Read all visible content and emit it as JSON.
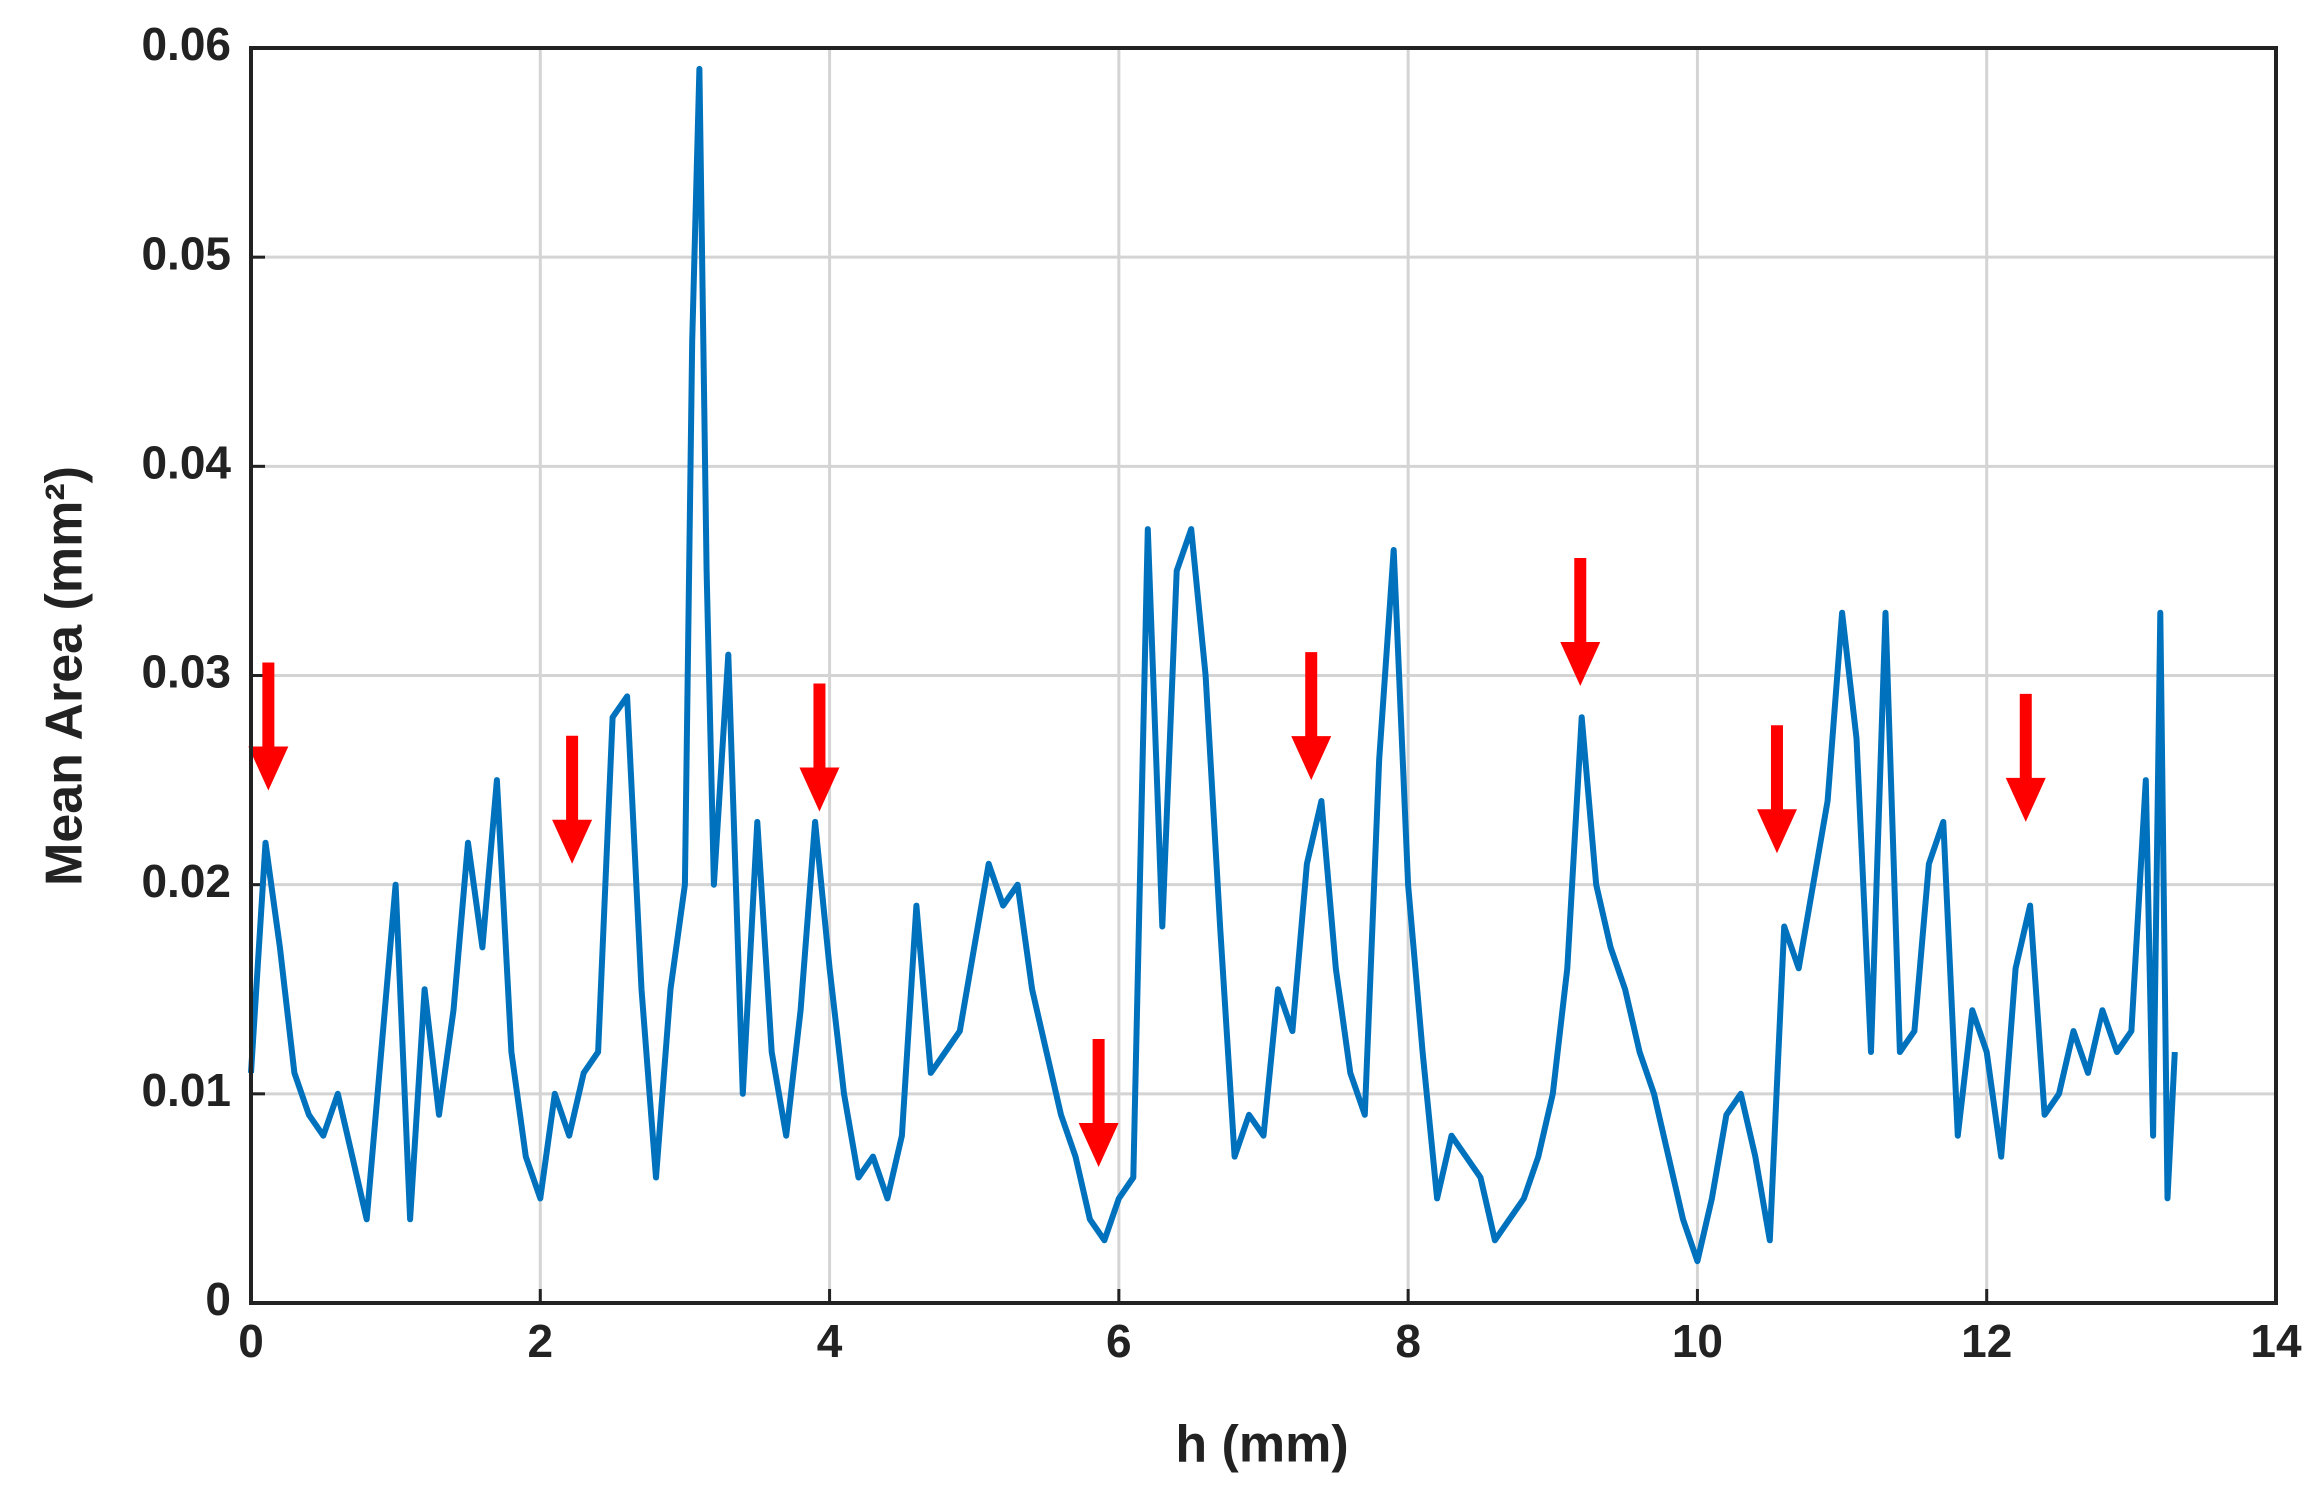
{
  "chart_data": {
    "type": "line",
    "xlabel": "h (mm)",
    "ylabel": "Mean Area (mm²)",
    "x": [
      0.0,
      0.1,
      0.2,
      0.3,
      0.4,
      0.5,
      0.6,
      0.7,
      0.8,
      0.9,
      1.0,
      1.1,
      1.2,
      1.3,
      1.4,
      1.5,
      1.6,
      1.7,
      1.8,
      1.9,
      2.0,
      2.1,
      2.2,
      2.3,
      2.4,
      2.5,
      2.6,
      2.7,
      2.8,
      2.9,
      3.0,
      3.05,
      3.1,
      3.15,
      3.2,
      3.3,
      3.4,
      3.5,
      3.6,
      3.7,
      3.8,
      3.9,
      4.0,
      4.1,
      4.2,
      4.3,
      4.4,
      4.5,
      4.6,
      4.7,
      4.8,
      4.9,
      5.0,
      5.1,
      5.2,
      5.3,
      5.4,
      5.5,
      5.6,
      5.7,
      5.8,
      5.9,
      6.0,
      6.1,
      6.2,
      6.3,
      6.4,
      6.5,
      6.6,
      6.7,
      6.8,
      6.9,
      7.0,
      7.1,
      7.2,
      7.3,
      7.4,
      7.5,
      7.6,
      7.7,
      7.8,
      7.9,
      8.0,
      8.1,
      8.2,
      8.3,
      8.4,
      8.5,
      8.6,
      8.7,
      8.8,
      8.9,
      9.0,
      9.1,
      9.2,
      9.3,
      9.4,
      9.5,
      9.6,
      9.7,
      9.8,
      9.9,
      10.0,
      10.1,
      10.2,
      10.3,
      10.4,
      10.5,
      10.6,
      10.7,
      10.8,
      10.9,
      11.0,
      11.1,
      11.2,
      11.3,
      11.4,
      11.5,
      11.6,
      11.7,
      11.8,
      11.9,
      12.0,
      12.1,
      12.2,
      12.3,
      12.4,
      12.5,
      12.6,
      12.7,
      12.8,
      12.9,
      13.0,
      13.1,
      13.15,
      13.2,
      13.25,
      13.3
    ],
    "values": [
      0.011,
      0.022,
      0.017,
      0.011,
      0.009,
      0.008,
      0.01,
      0.007,
      0.004,
      0.012,
      0.02,
      0.004,
      0.015,
      0.009,
      0.014,
      0.022,
      0.017,
      0.025,
      0.012,
      0.007,
      0.005,
      0.01,
      0.008,
      0.011,
      0.012,
      0.028,
      0.029,
      0.015,
      0.006,
      0.015,
      0.02,
      0.046,
      0.059,
      0.035,
      0.02,
      0.031,
      0.01,
      0.023,
      0.012,
      0.008,
      0.014,
      0.023,
      0.016,
      0.01,
      0.006,
      0.007,
      0.005,
      0.008,
      0.019,
      0.011,
      0.012,
      0.013,
      0.017,
      0.021,
      0.019,
      0.02,
      0.015,
      0.012,
      0.009,
      0.007,
      0.004,
      0.003,
      0.005,
      0.006,
      0.037,
      0.018,
      0.035,
      0.037,
      0.03,
      0.018,
      0.007,
      0.009,
      0.008,
      0.015,
      0.013,
      0.021,
      0.024,
      0.016,
      0.011,
      0.009,
      0.026,
      0.036,
      0.02,
      0.012,
      0.005,
      0.008,
      0.007,
      0.006,
      0.003,
      0.004,
      0.005,
      0.007,
      0.01,
      0.016,
      0.028,
      0.02,
      0.017,
      0.015,
      0.012,
      0.01,
      0.007,
      0.004,
      0.002,
      0.005,
      0.009,
      0.01,
      0.007,
      0.003,
      0.018,
      0.016,
      0.02,
      0.024,
      0.033,
      0.027,
      0.012,
      0.033,
      0.012,
      0.013,
      0.021,
      0.023,
      0.008,
      0.014,
      0.012,
      0.007,
      0.016,
      0.019,
      0.009,
      0.01,
      0.013,
      0.011,
      0.014,
      0.012,
      0.013,
      0.025,
      0.008,
      0.033,
      0.005,
      0.012
    ],
    "color": "#0072bd",
    "arrows": {
      "x": [
        0.12,
        2.22,
        3.93,
        5.86,
        7.33,
        9.19,
        10.55,
        12.27
      ],
      "y": [
        0.0245,
        0.021,
        0.0235,
        0.0065,
        0.025,
        0.0295,
        0.0215,
        0.023
      ],
      "color": "#ff0000"
    },
    "xlim": [
      0,
      14
    ],
    "xticks": [
      0,
      2,
      4,
      6,
      8,
      10,
      12,
      14
    ],
    "ylim": [
      0,
      0.06
    ],
    "yticks": [
      0,
      0.01,
      0.02,
      0.03,
      0.04,
      0.05,
      0.06
    ],
    "grid": true
  }
}
